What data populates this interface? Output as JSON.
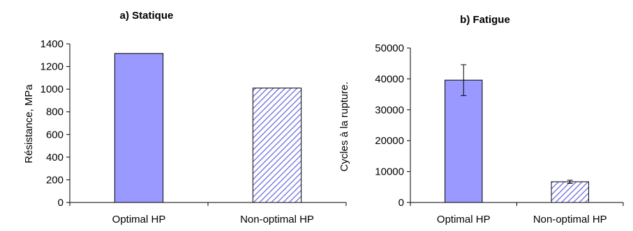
{
  "colors": {
    "solid_fill": "#9999ff",
    "hatch_color": "#6666dd",
    "hatch_background": "#ffffff",
    "axis": "#000000"
  },
  "chart_data": [
    {
      "type": "bar",
      "title": "a) Statique",
      "xlabel": "",
      "ylabel": "Résistance, MPa",
      "categories": [
        "Optimal HP",
        "Non-optimal HP"
      ],
      "values": [
        1315,
        1010
      ],
      "bar_styles": [
        "solid",
        "hatched"
      ],
      "ylim": [
        0,
        1400
      ],
      "yticks": [
        0,
        200,
        400,
        600,
        800,
        1000,
        1200,
        1400
      ],
      "grid": false,
      "legend": "none"
    },
    {
      "type": "bar",
      "title": "b) Fatigue",
      "xlabel": "",
      "ylabel": "Cycles à la rupture.",
      "categories": [
        "Optimal HP",
        "Non-optimal HP"
      ],
      "values": [
        39600,
        6700
      ],
      "error_bars": [
        5000,
        500
      ],
      "bar_styles": [
        "solid",
        "hatched"
      ],
      "ylim": [
        0,
        50000
      ],
      "yticks": [
        0,
        10000,
        20000,
        30000,
        40000,
        50000
      ],
      "grid": false,
      "legend": "none"
    }
  ]
}
